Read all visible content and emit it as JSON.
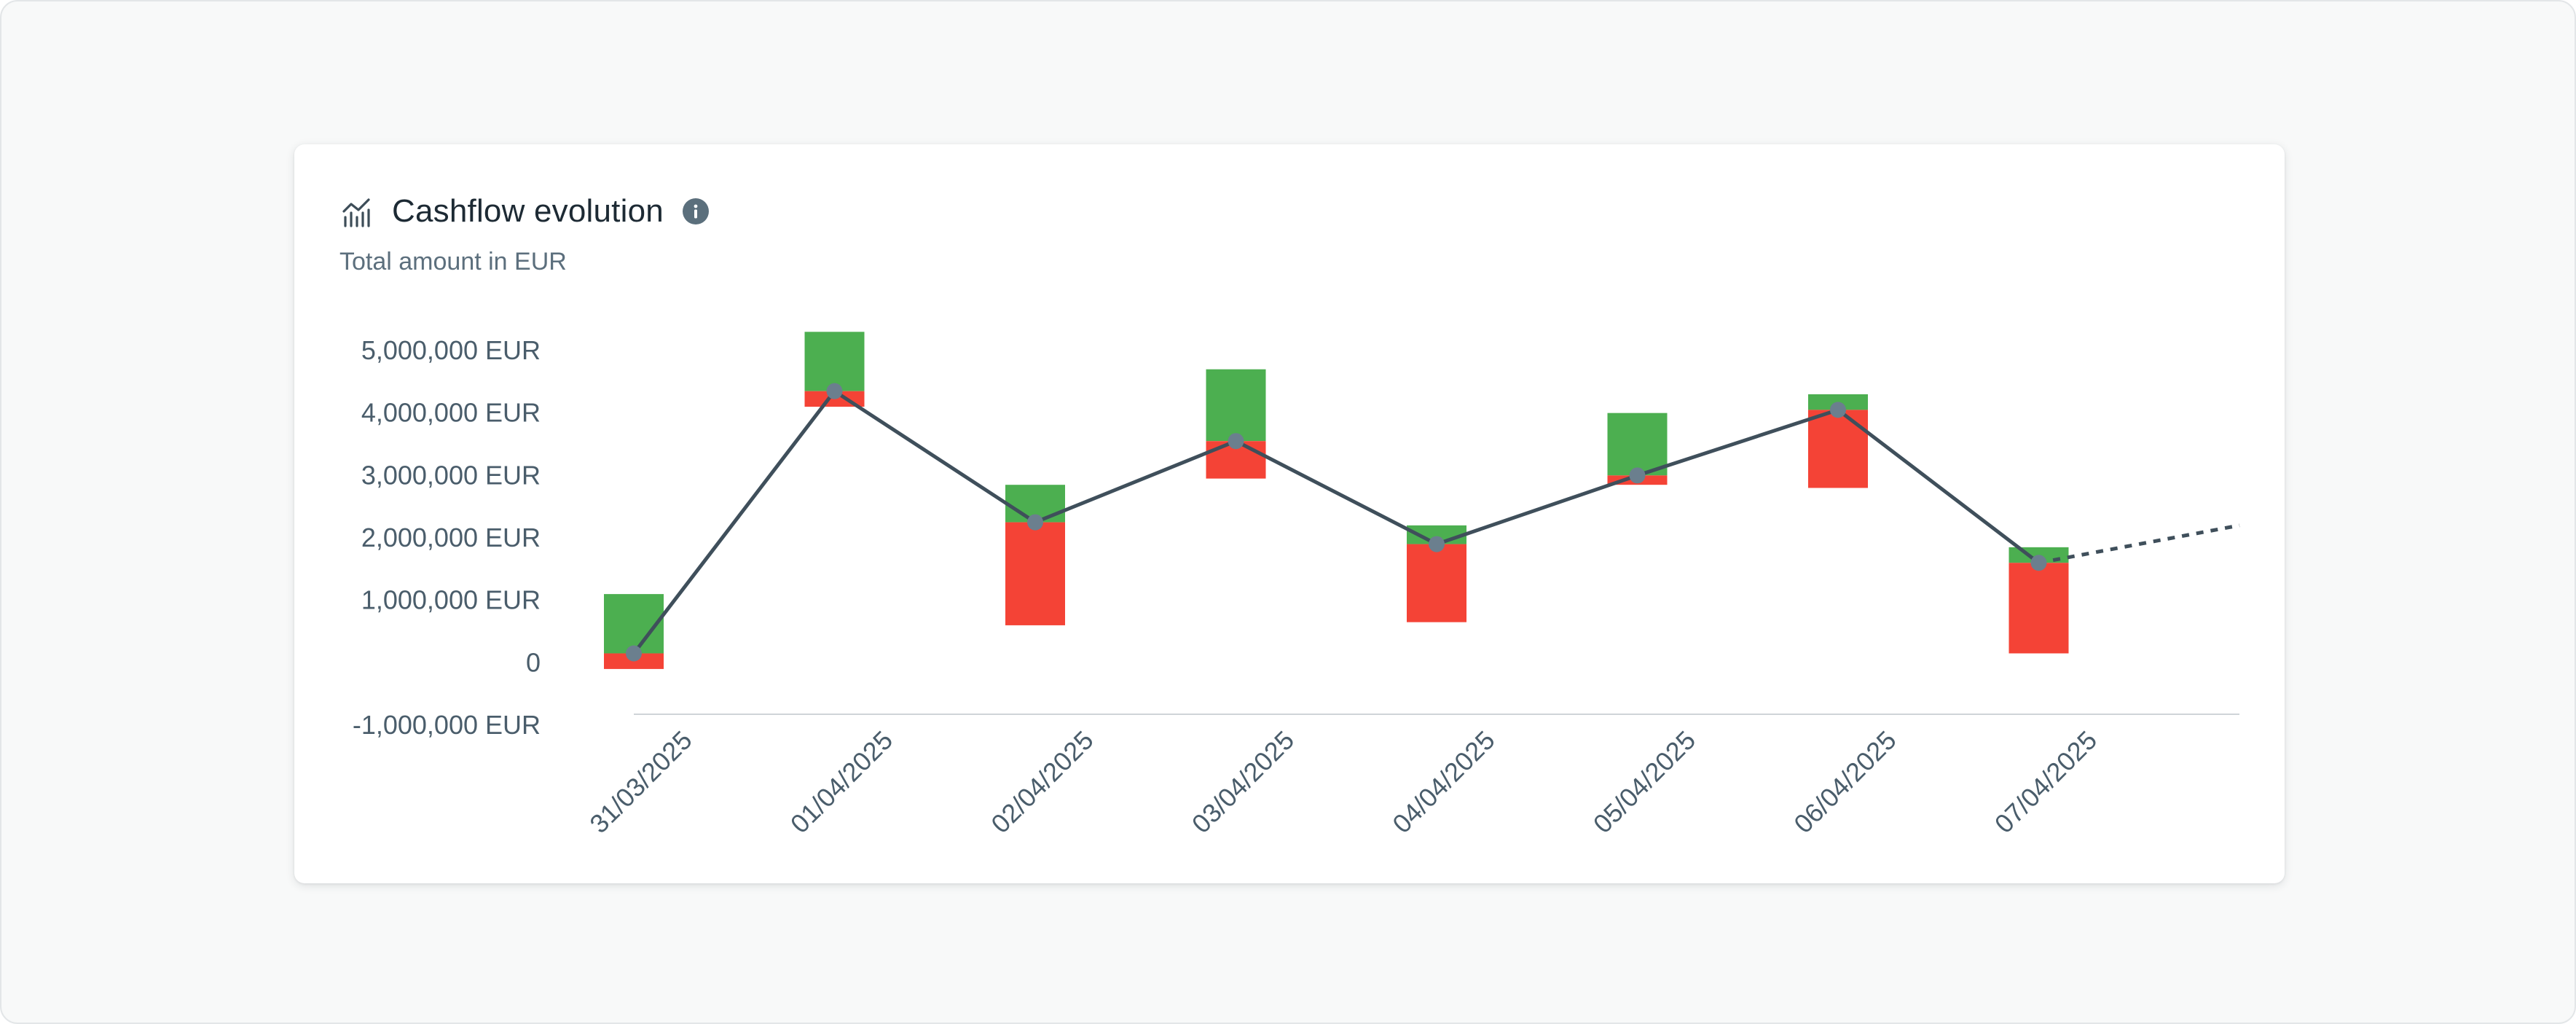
{
  "header": {
    "title": "Cashflow evolution",
    "subtitle": "Total amount in EUR",
    "title_icon": "line-chart-icon",
    "info_icon": "info-icon"
  },
  "colors": {
    "inflow": "#4caf50",
    "outflow": "#f44336",
    "line": "#3f4f5b",
    "point": "#6b7f8e",
    "axis": "#cfd4d8"
  },
  "chart_data": {
    "type": "bar",
    "categories": [
      "31/03/2025",
      "01/04/2025",
      "02/04/2025",
      "03/04/2025",
      "04/04/2025",
      "05/04/2025",
      "06/04/2025",
      "07/04/2025"
    ],
    "series": [
      {
        "values": [
          1100000,
          5300000,
          2850000,
          4700000,
          2200000,
          4000000,
          4300000,
          1850000
        ]
      },
      {
        "values": [
          -100000,
          4100000,
          600000,
          2950000,
          650000,
          2850000,
          2800000,
          150000
        ]
      },
      {
        "values": [
          150000,
          4350000,
          2250000,
          3550000,
          1900000,
          3000000,
          4050000,
          1600000
        ]
      }
    ],
    "forecast": {
      "from": "07/04/2025",
      "end_value": 2200000
    },
    "yticks": [
      "5,000,000 EUR",
      "4,000,000 EUR",
      "3,000,000 EUR",
      "2,000,000 EUR",
      "1,000,000 EUR",
      "0",
      "-1,000,000 EUR"
    ],
    "ylim": [
      -1000000,
      5000000
    ],
    "grid": false,
    "xlabel": "",
    "ylabel": ""
  }
}
